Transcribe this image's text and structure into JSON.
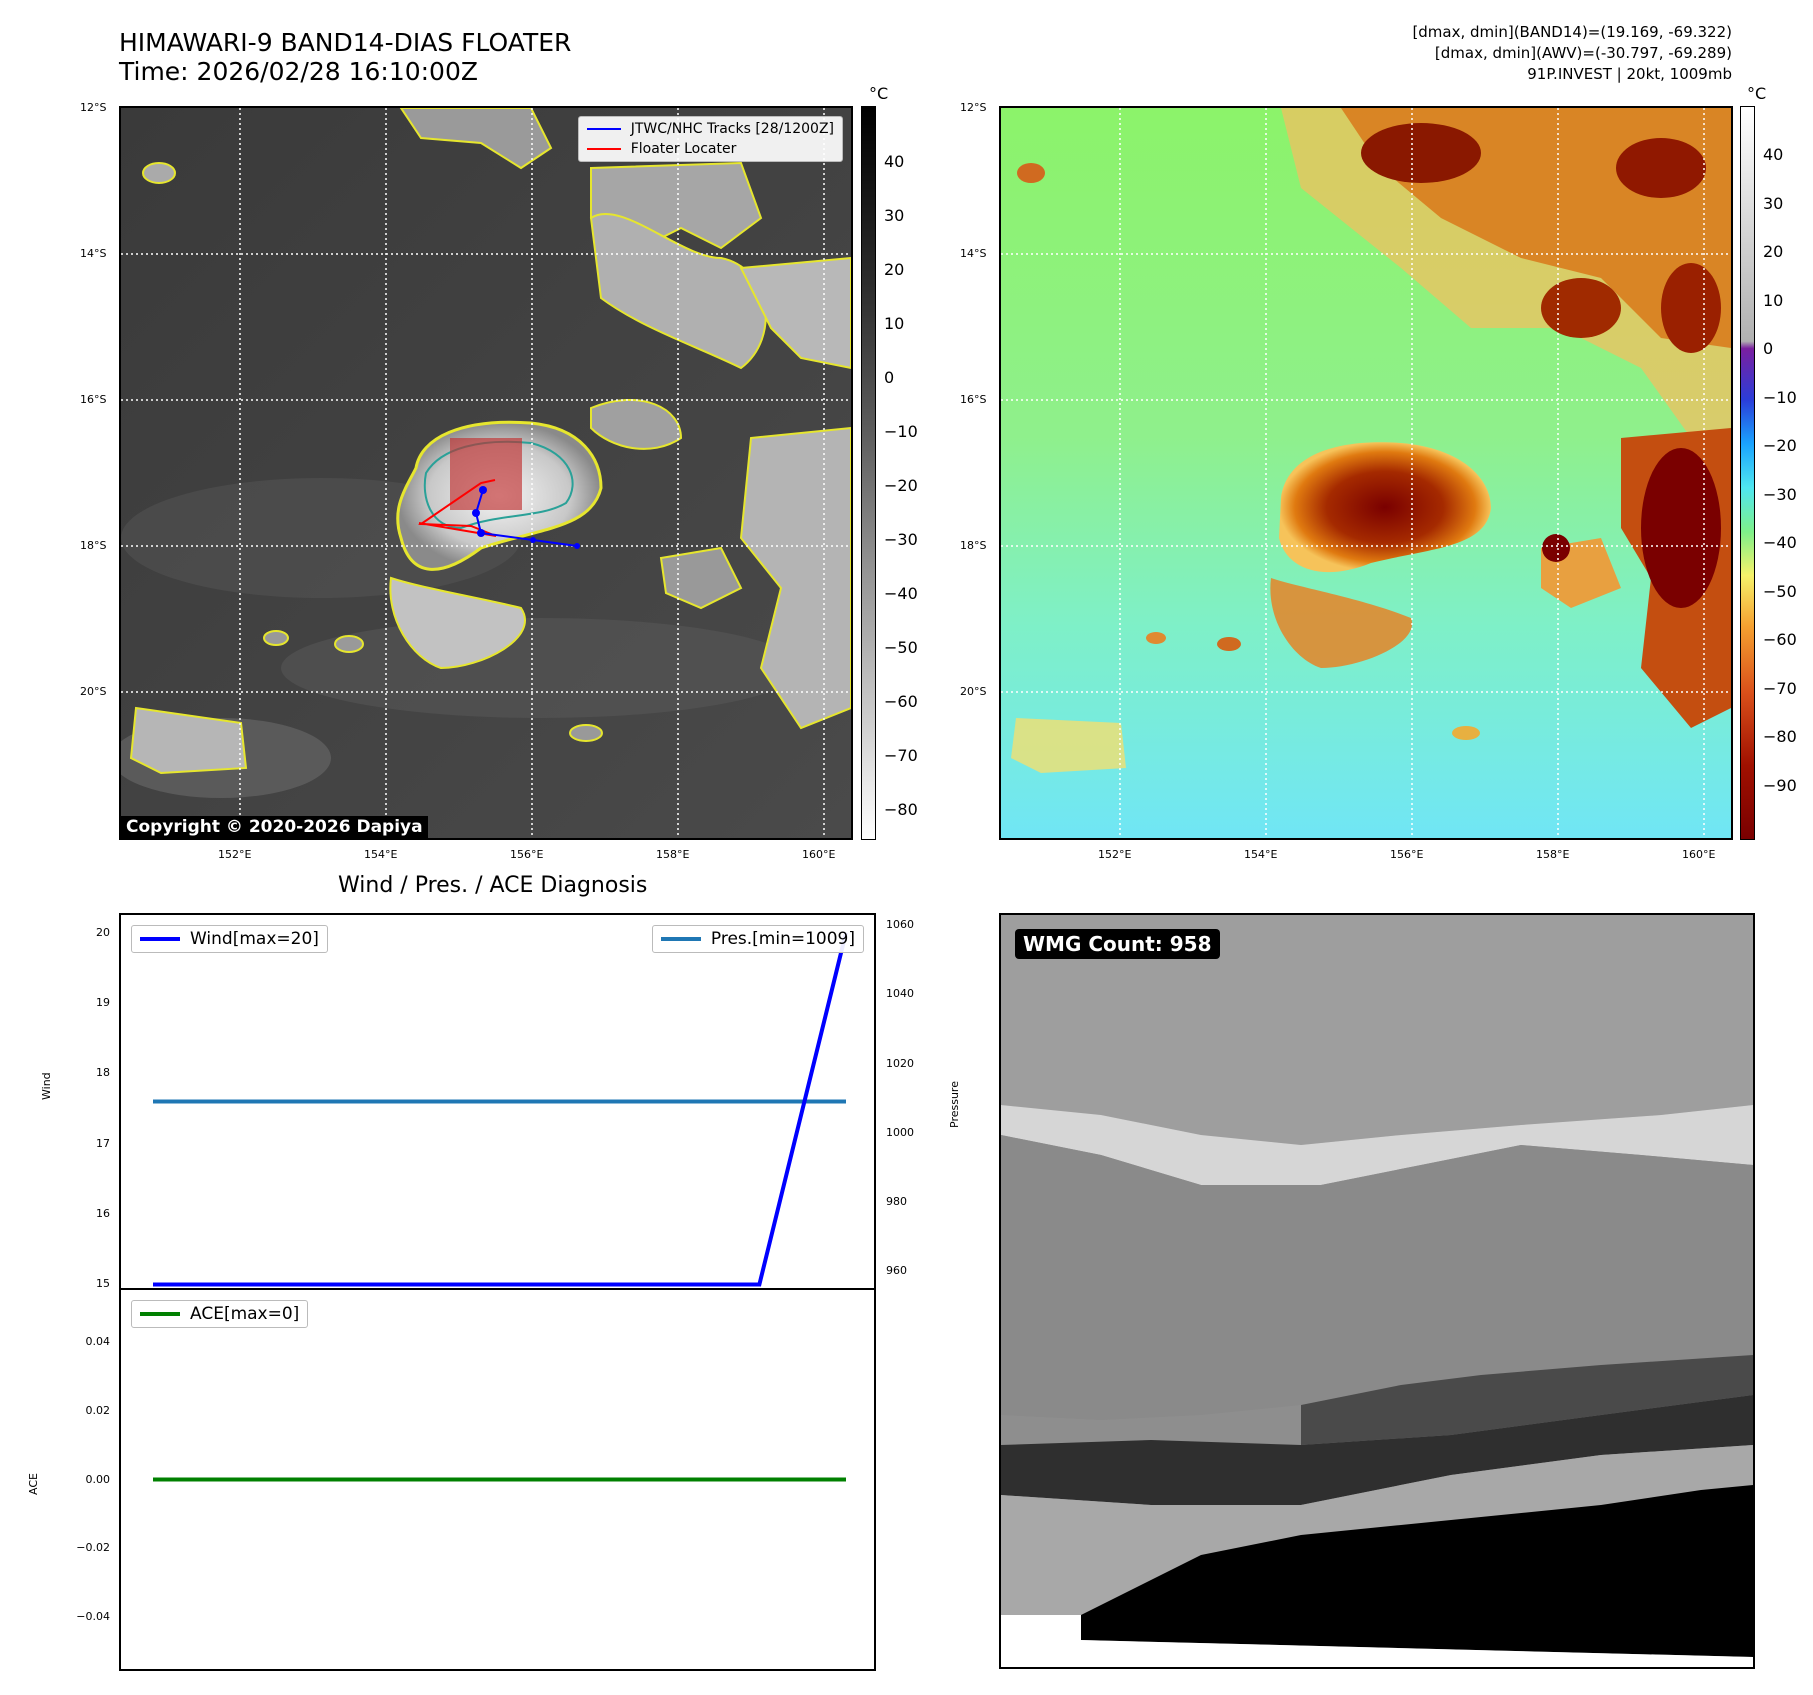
{
  "header": {
    "title_line1": "HIMAWARI-9 BAND14-DIAS FLOATER",
    "title_line2": "Time: 2026/02/28 16:10:00Z",
    "info_line1": "[dmax, dmin](BAND14)=(19.169, -69.322)",
    "info_line2": "[dmax, dmin](AWV)=(-30.797, -69.289)",
    "info_line3": "91P.INVEST | 20kt, 1009mb"
  },
  "map": {
    "lat_ticks": [
      "12°S",
      "14°S",
      "16°S",
      "18°S",
      "20°S"
    ],
    "lon_ticks": [
      "152°E",
      "154°E",
      "156°E",
      "158°E",
      "160°E"
    ],
    "copyright": "Copyright © 2020-2026 Dapiya",
    "legend_tracks": "JTWC/NHC Tracks [28/1200Z]",
    "legend_floater": "Floater Locater",
    "track_color": "#0000ff",
    "floater_color": "#ff0000"
  },
  "colorbar_gray": {
    "unit": "°C",
    "ticks": [
      "40",
      "30",
      "20",
      "10",
      "0",
      "−10",
      "−20",
      "−30",
      "−40",
      "−50",
      "−60",
      "−70",
      "−80"
    ]
  },
  "colorbar_color": {
    "unit": "°C",
    "ticks": [
      "40",
      "30",
      "20",
      "10",
      "0",
      "−10",
      "−20",
      "−30",
      "−40",
      "−50",
      "−60",
      "−70",
      "−80",
      "−90"
    ]
  },
  "diag": {
    "title": "Wind / Pres. / ACE Diagnosis",
    "wind_axis_label": "Wind",
    "pressure_axis_label": "Pressure",
    "ace_axis_label": "ACE",
    "wind_ticks": [
      "20",
      "19",
      "18",
      "17",
      "16",
      "15"
    ],
    "pressure_ticks": [
      "1060",
      "1040",
      "1020",
      "1000",
      "980",
      "960"
    ],
    "ace_ticks": [
      "0.04",
      "0.02",
      "0.00",
      "−0.02",
      "−0.04"
    ],
    "legend_wind": "Wind[max=20]",
    "legend_pres": "Pres.[min=1009]",
    "legend_ace": "ACE[max=0]",
    "wind_color": "#0000ff",
    "pres_color": "#1f77b4",
    "ace_color": "#008000"
  },
  "wmg": {
    "label": "WMG Count: 958"
  },
  "chart_data": [
    {
      "type": "line",
      "title": "Wind / Pres. / ACE Diagnosis",
      "ylabel": "Wind",
      "ylim": [
        14.95,
        20.25
      ],
      "series": [
        {
          "name": "Wind[max=20]",
          "x": [
            0,
            1,
            2,
            3,
            4,
            5,
            6,
            7,
            8
          ],
          "values": [
            15,
            15,
            15,
            15,
            15,
            15,
            15,
            15,
            20
          ]
        }
      ]
    },
    {
      "type": "line",
      "ylabel": "Pressure",
      "ylim": [
        955,
        1063
      ],
      "series": [
        {
          "name": "Pres.[min=1009]",
          "x": [
            0,
            1,
            2,
            3,
            4,
            5,
            6,
            7,
            8
          ],
          "values": [
            1009,
            1009,
            1009,
            1009,
            1009,
            1009,
            1009,
            1009,
            1009
          ]
        }
      ]
    },
    {
      "type": "line",
      "ylabel": "ACE",
      "ylim": [
        -0.055,
        0.055
      ],
      "series": [
        {
          "name": "ACE[max=0]",
          "x": [
            0,
            1,
            2,
            3,
            4,
            5,
            6,
            7,
            8
          ],
          "values": [
            0,
            0,
            0,
            0,
            0,
            0,
            0,
            0,
            0
          ]
        }
      ]
    }
  ]
}
